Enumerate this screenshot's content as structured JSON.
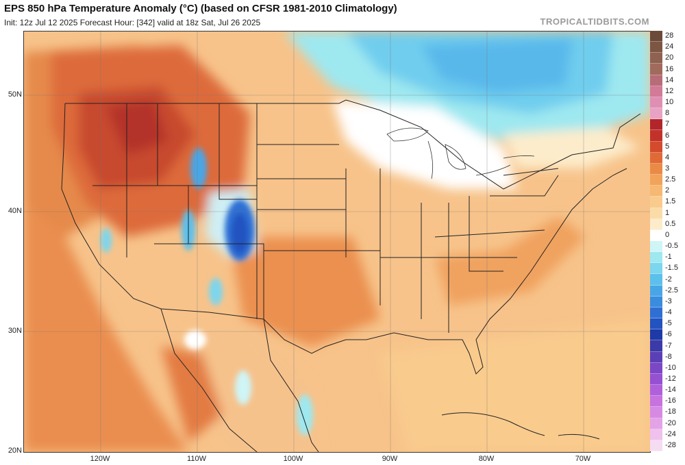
{
  "header": {
    "title": "EPS 850 hPa Temperature Anomaly (°C) (based on CFSR 1981-2010 Climatology)",
    "subtitle": "Init: 12z Jul 12 2025   Forecast Hour: [342]   valid at 18z Sat, Jul 26 2025",
    "brand": "TROPICALTIDBITS.COM"
  },
  "axes": {
    "lat_labels": [
      "50N",
      "40N",
      "30N",
      "20N"
    ],
    "lon_labels": [
      "120W",
      "110W",
      "100W",
      "90W",
      "80W",
      "70W"
    ]
  },
  "legend": {
    "levels": [
      "28",
      "24",
      "20",
      "16",
      "14",
      "12",
      "10",
      "8",
      "7",
      "6",
      "5",
      "4",
      "3",
      "2.5",
      "2",
      "1.5",
      "1",
      "0.5",
      "0",
      "-0.5",
      "-1",
      "-1.5",
      "-2",
      "-2.5",
      "-3",
      "-4",
      "-5",
      "-6",
      "-7",
      "-8",
      "-10",
      "-12",
      "-14",
      "-16",
      "-18",
      "-20",
      "-24",
      "-28"
    ],
    "colors": [
      "#6b4a3a",
      "#7d5543",
      "#8f6250",
      "#a06a5d",
      "#b86b78",
      "#d27a98",
      "#e08fb4",
      "#e8a3c4",
      "#b2262b",
      "#c3322a",
      "#d44a2c",
      "#e06a36",
      "#ea8a45",
      "#f2a35a",
      "#f6b872",
      "#f9cb8d",
      "#fbdca8",
      "#fdeccb",
      "#ffffff",
      "#cff5f7",
      "#9ee8f0",
      "#7bd6ee",
      "#5cc0ec",
      "#48a6e6",
      "#3a8cdf",
      "#2f6fd4",
      "#2253c0",
      "#1d3aa6",
      "#3b3aa8",
      "#5b3fb6",
      "#7b47c6",
      "#9650d2",
      "#b160dc",
      "#c673e0",
      "#d78ae4",
      "#e4a3e6",
      "#efc1ec",
      "#f6dcf2"
    ]
  }
}
